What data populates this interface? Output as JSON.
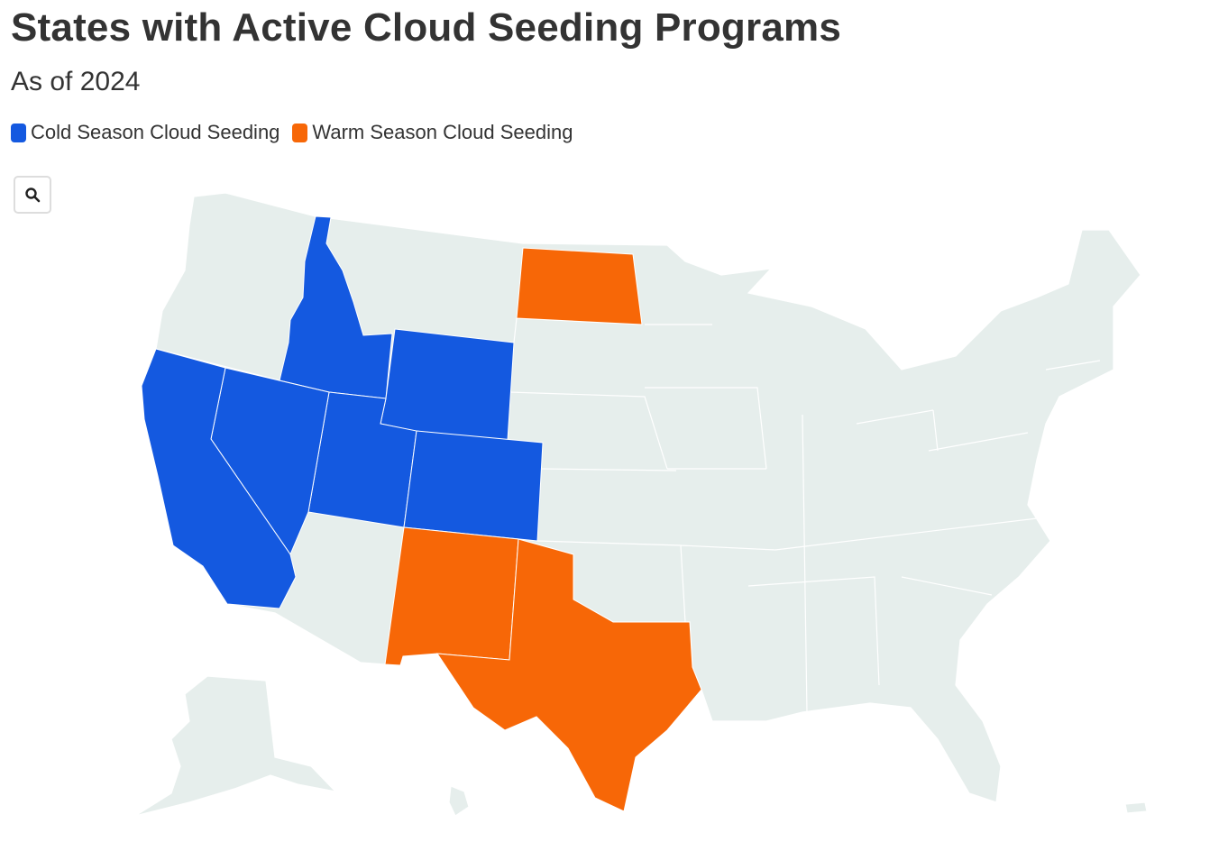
{
  "header": {
    "title": "States with Active Cloud Seeding Programs",
    "subtitle": "As of 2024"
  },
  "legend": [
    {
      "label": "Cold Season Cloud Seeding",
      "color": "#1459e0"
    },
    {
      "label": "Warm Season Cloud Seeding",
      "color": "#f76707"
    }
  ]
}
